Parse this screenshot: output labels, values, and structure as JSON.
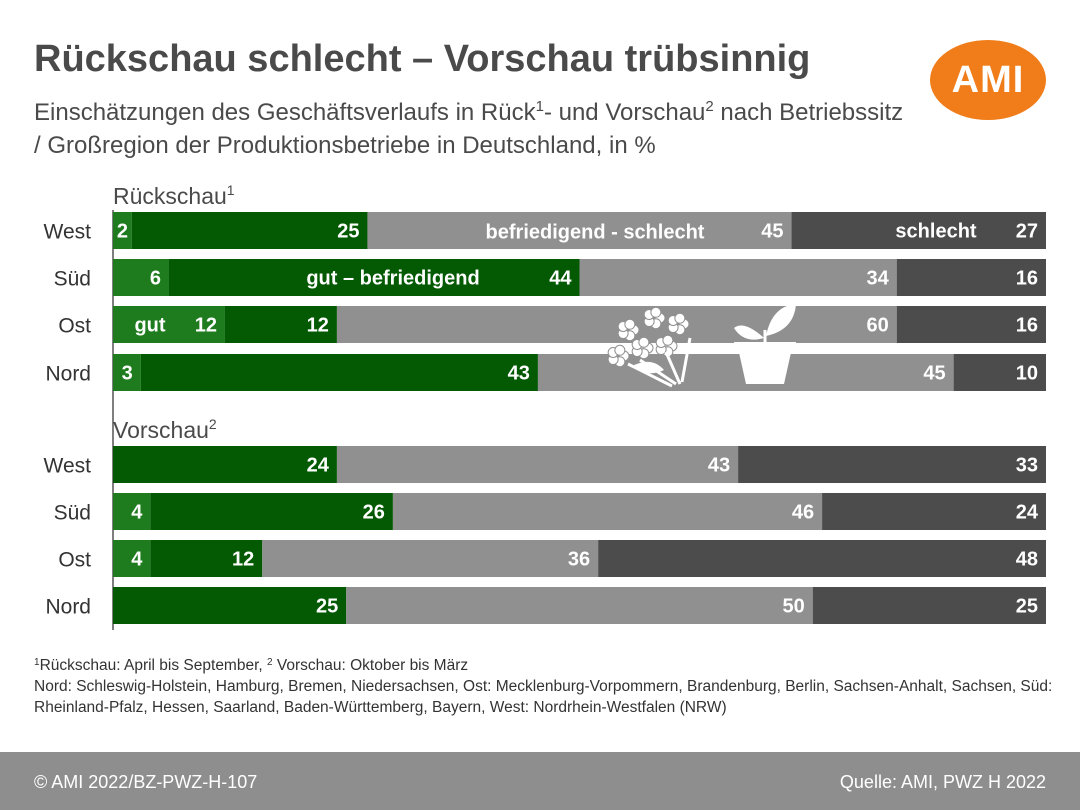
{
  "header": {
    "title": "Rückschau schlecht – Vorschau trübsinnig",
    "subtitle_part1": "Einschätzungen des Geschäftsverlaufs in Rück",
    "subtitle_sup1": "1",
    "subtitle_part2": "- und Vorschau",
    "subtitle_sup2": "2",
    "subtitle_part3": " nach Betriebssitz / Großregion der Produktionsbetriebe in Deutschland, in %",
    "logo_text": "AMI"
  },
  "colors": {
    "gut": "#1e7b1e",
    "gut_befriedigend": "#035a03",
    "befriedigend_schlecht": "#909090",
    "schlecht": "#4c4c4c",
    "logo": "#f07d1a"
  },
  "icons": [
    "flower-bouquet-icon",
    "potted-plant-icon"
  ],
  "chart_data": {
    "type": "bar",
    "orientation": "horizontal",
    "stacked": true,
    "categories_order": [
      "gut",
      "gut – befriedigend",
      "befriedigend - schlecht",
      "schlecht"
    ],
    "annotations": [
      "gut",
      "gut – befriedigend",
      "befriedigend - schlecht",
      "schlecht"
    ],
    "groups": [
      {
        "label": "Rückschau",
        "label_sup": "1",
        "rows": [
          {
            "region": "West",
            "values": [
              2,
              25,
              45,
              27
            ]
          },
          {
            "region": "Süd",
            "values": [
              6,
              44,
              34,
              16
            ]
          },
          {
            "region": "Ost",
            "values": [
              12,
              12,
              60,
              16
            ]
          },
          {
            "region": "Nord",
            "values": [
              3,
              43,
              45,
              10
            ]
          }
        ]
      },
      {
        "label": "Vorschau",
        "label_sup": "2",
        "rows": [
          {
            "region": "West",
            "values": [
              0,
              24,
              43,
              33
            ]
          },
          {
            "region": "Süd",
            "values": [
              4,
              26,
              46,
              24
            ]
          },
          {
            "region": "Ost",
            "values": [
              4,
              12,
              36,
              48
            ]
          },
          {
            "region": "Nord",
            "values": [
              0,
              25,
              50,
              25
            ]
          }
        ]
      }
    ]
  },
  "footnotes": {
    "line1_sup1": "1",
    "line1_a": "Rückschau: April bis September, ",
    "line1_sup2": "2",
    "line1_b": " Vorschau: Oktober bis März",
    "line2": "Nord: Schleswig-Holstein, Hamburg, Bremen, Niedersachsen, Ost: Mecklenburg-Vorpommern, Brandenburg, Berlin, Sachsen-Anhalt, Sachsen, Süd: Rheinland-Pfalz, Hessen, Saarland, Baden-Württemberg, Bayern, West: Nordrhein-Westfalen (NRW)"
  },
  "footer": {
    "left": "© AMI 2022/BZ-PWZ-H-107",
    "right": "Quelle: AMI, PWZ H 2022"
  }
}
